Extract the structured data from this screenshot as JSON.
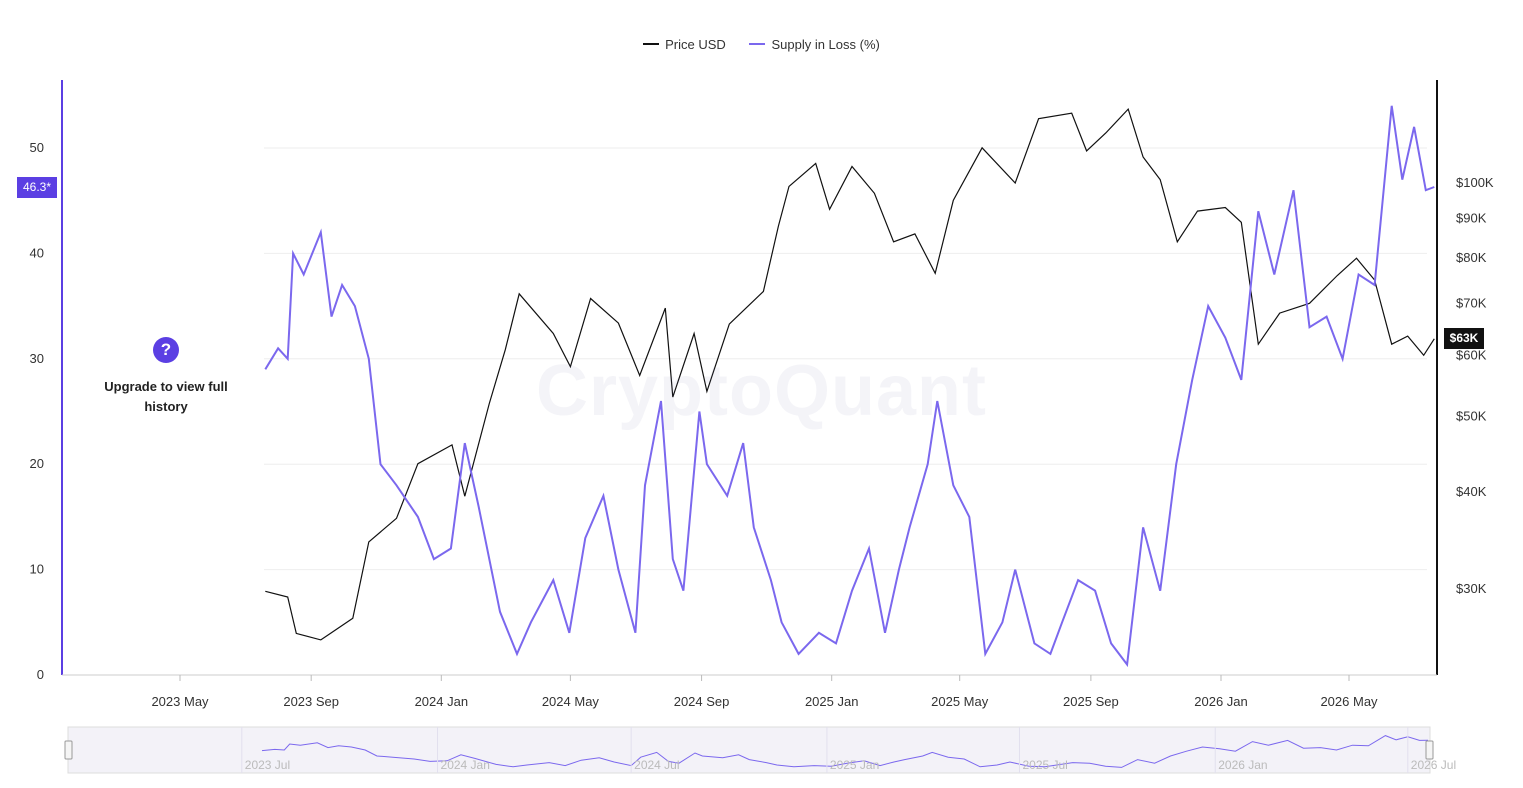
{
  "legend": [
    {
      "label": "Price USD",
      "color": "#111111"
    },
    {
      "label": "Supply in Loss (%)",
      "color": "#7b68ee"
    }
  ],
  "current_values": {
    "supply_in_loss": "46.3*",
    "price": "$63K"
  },
  "upgrade": {
    "text": "Upgrade to view full history",
    "icon": "question-icon"
  },
  "watermark": "CryptoQuant",
  "colors": {
    "price": "#111111",
    "supply": "#7b68ee",
    "accent": "#5b3fe3",
    "grid": "#eeeeee"
  },
  "chart_data": {
    "type": "line",
    "title": "",
    "x_ticks": [
      "2023 May",
      "2023 Sep",
      "2024 Jan",
      "2024 May",
      "2024 Sep",
      "2025 Jan",
      "2025 May",
      "2025 Sep",
      "2026 Jan",
      "2026 May"
    ],
    "x_range": [
      "2023-03-01",
      "2026-07-15"
    ],
    "left_axis": {
      "label": "",
      "ticks": [
        0,
        10,
        20,
        30,
        40,
        50
      ],
      "ylim": [
        0,
        55.6
      ]
    },
    "right_axis": {
      "label": "",
      "scale": "log",
      "ticks": [
        "$30K",
        "$40K",
        "$50K",
        "$60K",
        "$70K",
        "$80K",
        "$90K",
        "$100K"
      ],
      "tick_values": [
        30000,
        40000,
        50000,
        60000,
        70000,
        80000,
        90000,
        100000
      ]
    },
    "series": [
      {
        "name": "Price USD",
        "axis": "right",
        "points": [
          [
            "2023-07-20",
            29800
          ],
          [
            "2023-08-10",
            29300
          ],
          [
            "2023-08-18",
            26300
          ],
          [
            "2023-09-10",
            25800
          ],
          [
            "2023-10-10",
            27500
          ],
          [
            "2023-10-25",
            34500
          ],
          [
            "2023-11-20",
            37000
          ],
          [
            "2023-12-10",
            43500
          ],
          [
            "2024-01-11",
            46000
          ],
          [
            "2024-01-23",
            39500
          ],
          [
            "2024-02-15",
            52000
          ],
          [
            "2024-03-01",
            61000
          ],
          [
            "2024-03-14",
            72000
          ],
          [
            "2024-04-15",
            64000
          ],
          [
            "2024-05-01",
            58000
          ],
          [
            "2024-05-20",
            71000
          ],
          [
            "2024-06-15",
            66000
          ],
          [
            "2024-07-05",
            56500
          ],
          [
            "2024-07-29",
            69000
          ],
          [
            "2024-08-05",
            53000
          ],
          [
            "2024-08-25",
            64000
          ],
          [
            "2024-09-06",
            53900
          ],
          [
            "2024-09-27",
            65800
          ],
          [
            "2024-10-29",
            72500
          ],
          [
            "2024-11-12",
            88000
          ],
          [
            "2024-11-22",
            99000
          ],
          [
            "2024-12-17",
            106000
          ],
          [
            "2024-12-30",
            92500
          ],
          [
            "2025-01-20",
            105000
          ],
          [
            "2025-02-10",
            97000
          ],
          [
            "2025-02-28",
            84000
          ],
          [
            "2025-03-20",
            86000
          ],
          [
            "2025-04-08",
            76500
          ],
          [
            "2025-04-25",
            95000
          ],
          [
            "2025-05-22",
            111000
          ],
          [
            "2025-06-22",
            100000
          ],
          [
            "2025-07-14",
            121000
          ],
          [
            "2025-08-14",
            123000
          ],
          [
            "2025-08-28",
            110000
          ],
          [
            "2025-09-15",
            116000
          ],
          [
            "2025-10-06",
            124500
          ],
          [
            "2025-10-20",
            108000
          ],
          [
            "2025-11-05",
            101000
          ],
          [
            "2025-11-21",
            84000
          ],
          [
            "2025-12-10",
            92000
          ],
          [
            "2026-01-05",
            93000
          ],
          [
            "2026-01-20",
            89000
          ],
          [
            "2026-02-05",
            62000
          ],
          [
            "2026-02-25",
            68000
          ],
          [
            "2026-03-25",
            70000
          ],
          [
            "2026-04-20",
            76000
          ],
          [
            "2026-05-08",
            80000
          ],
          [
            "2026-05-25",
            75000
          ],
          [
            "2026-06-10",
            62000
          ],
          [
            "2026-06-25",
            63500
          ],
          [
            "2026-07-10",
            60000
          ],
          [
            "2026-07-20",
            63000
          ]
        ]
      },
      {
        "name": "Supply in Loss (%)",
        "axis": "left",
        "points": [
          [
            "2023-07-20",
            29
          ],
          [
            "2023-08-01",
            31
          ],
          [
            "2023-08-10",
            30
          ],
          [
            "2023-08-15",
            40
          ],
          [
            "2023-08-25",
            38
          ],
          [
            "2023-09-10",
            42
          ],
          [
            "2023-09-20",
            34
          ],
          [
            "2023-09-30",
            37
          ],
          [
            "2023-10-12",
            35
          ],
          [
            "2023-10-25",
            30
          ],
          [
            "2023-11-05",
            20
          ],
          [
            "2023-11-20",
            18
          ],
          [
            "2023-12-10",
            15
          ],
          [
            "2023-12-25",
            11
          ],
          [
            "2024-01-10",
            12
          ],
          [
            "2024-01-23",
            22
          ],
          [
            "2024-02-05",
            16
          ],
          [
            "2024-02-25",
            6
          ],
          [
            "2024-03-12",
            2
          ],
          [
            "2024-03-25",
            5
          ],
          [
            "2024-04-15",
            9
          ],
          [
            "2024-04-30",
            4
          ],
          [
            "2024-05-15",
            13
          ],
          [
            "2024-06-01",
            17
          ],
          [
            "2024-06-15",
            10
          ],
          [
            "2024-07-01",
            4
          ],
          [
            "2024-07-10",
            18
          ],
          [
            "2024-07-25",
            26
          ],
          [
            "2024-08-05",
            11
          ],
          [
            "2024-08-15",
            8
          ],
          [
            "2024-08-30",
            25
          ],
          [
            "2024-09-06",
            20
          ],
          [
            "2024-09-25",
            17
          ],
          [
            "2024-10-10",
            22
          ],
          [
            "2024-10-20",
            14
          ],
          [
            "2024-11-05",
            9
          ],
          [
            "2024-11-15",
            5
          ],
          [
            "2024-12-01",
            2
          ],
          [
            "2024-12-20",
            4
          ],
          [
            "2025-01-05",
            3
          ],
          [
            "2025-01-20",
            8
          ],
          [
            "2025-02-05",
            12
          ],
          [
            "2025-02-20",
            4
          ],
          [
            "2025-03-05",
            10
          ],
          [
            "2025-03-15",
            14
          ],
          [
            "2025-04-01",
            20
          ],
          [
            "2025-04-10",
            26
          ],
          [
            "2025-04-25",
            18
          ],
          [
            "2025-05-10",
            15
          ],
          [
            "2025-05-25",
            2
          ],
          [
            "2025-06-10",
            5
          ],
          [
            "2025-06-22",
            10
          ],
          [
            "2025-07-10",
            3
          ],
          [
            "2025-07-25",
            2
          ],
          [
            "2025-08-05",
            5
          ],
          [
            "2025-08-20",
            9
          ],
          [
            "2025-09-05",
            8
          ],
          [
            "2025-09-20",
            3
          ],
          [
            "2025-10-05",
            1
          ],
          [
            "2025-10-20",
            14
          ],
          [
            "2025-11-05",
            8
          ],
          [
            "2025-11-20",
            20
          ],
          [
            "2025-12-05",
            28
          ],
          [
            "2025-12-20",
            35
          ],
          [
            "2026-01-05",
            32
          ],
          [
            "2026-01-20",
            28
          ],
          [
            "2026-02-05",
            44
          ],
          [
            "2026-02-20",
            38
          ],
          [
            "2026-03-10",
            46
          ],
          [
            "2026-03-25",
            33
          ],
          [
            "2026-04-10",
            34
          ],
          [
            "2026-04-25",
            30
          ],
          [
            "2026-05-10",
            38
          ],
          [
            "2026-05-25",
            37
          ],
          [
            "2026-06-10",
            54
          ],
          [
            "2026-06-20",
            47
          ],
          [
            "2026-07-01",
            52
          ],
          [
            "2026-07-12",
            46
          ],
          [
            "2026-07-20",
            46.3
          ]
        ]
      }
    ],
    "navigator_ticks": [
      "2023 Jul",
      "2024 Jan",
      "2024 Jul",
      "2025 Jan",
      "2025 Jul",
      "2026 Jan",
      "2026 Jul"
    ]
  }
}
